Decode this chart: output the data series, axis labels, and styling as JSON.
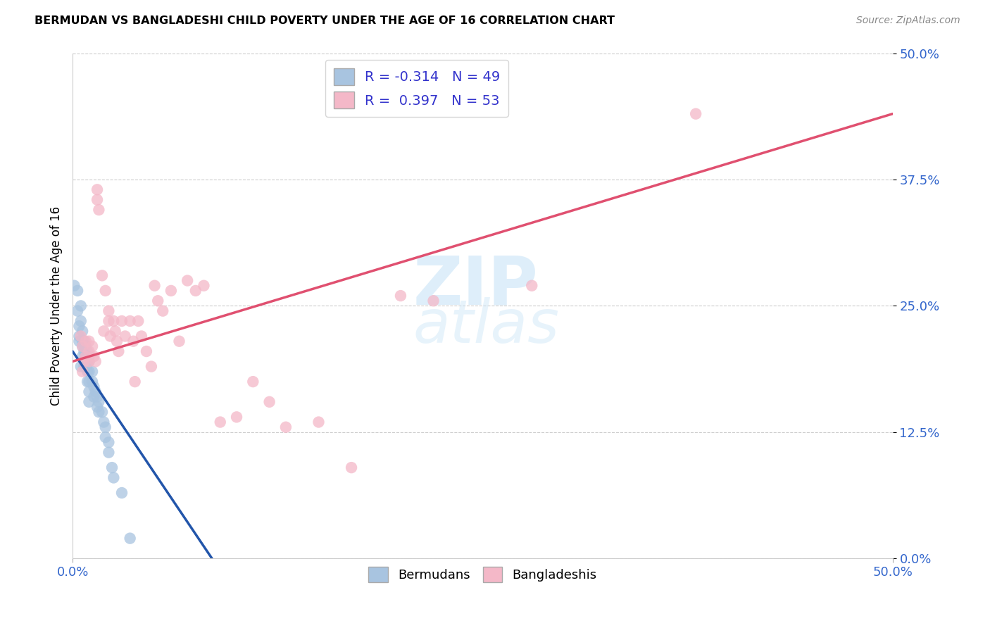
{
  "title": "BERMUDAN VS BANGLADESHI CHILD POVERTY UNDER THE AGE OF 16 CORRELATION CHART",
  "source": "Source: ZipAtlas.com",
  "ylabel": "Child Poverty Under the Age of 16",
  "xmin": 0.0,
  "xmax": 0.5,
  "ymin": 0.0,
  "ymax": 0.5,
  "yticks": [
    0.0,
    0.125,
    0.25,
    0.375,
    0.5
  ],
  "ytick_labels": [
    "0.0%",
    "12.5%",
    "25.0%",
    "37.5%",
    "50.0%"
  ],
  "bermuda_R": "-0.314",
  "bermuda_N": "49",
  "bangladesh_R": "0.397",
  "bangladesh_N": "53",
  "bermuda_color": "#a8c4e0",
  "bermuda_line_color": "#2255aa",
  "bangladesh_color": "#f4b8c8",
  "bangladesh_line_color": "#e05070",
  "grid_color": "#cccccc",
  "legend_color_blue": "#a8c4e0",
  "legend_color_pink": "#f4b8c8",
  "bermuda_x": [
    0.001,
    0.003,
    0.003,
    0.004,
    0.004,
    0.004,
    0.005,
    0.005,
    0.005,
    0.006,
    0.006,
    0.006,
    0.006,
    0.007,
    0.007,
    0.007,
    0.007,
    0.008,
    0.008,
    0.008,
    0.009,
    0.009,
    0.009,
    0.009,
    0.01,
    0.01,
    0.01,
    0.01,
    0.01,
    0.01,
    0.012,
    0.012,
    0.013,
    0.013,
    0.014,
    0.015,
    0.015,
    0.016,
    0.016,
    0.018,
    0.019,
    0.02,
    0.02,
    0.022,
    0.022,
    0.024,
    0.025,
    0.03,
    0.035
  ],
  "bermuda_y": [
    0.27,
    0.265,
    0.245,
    0.23,
    0.22,
    0.215,
    0.25,
    0.235,
    0.19,
    0.225,
    0.215,
    0.21,
    0.2,
    0.215,
    0.21,
    0.205,
    0.19,
    0.21,
    0.2,
    0.19,
    0.205,
    0.195,
    0.185,
    0.175,
    0.2,
    0.195,
    0.185,
    0.175,
    0.165,
    0.155,
    0.185,
    0.175,
    0.17,
    0.16,
    0.165,
    0.16,
    0.15,
    0.155,
    0.145,
    0.145,
    0.135,
    0.13,
    0.12,
    0.115,
    0.105,
    0.09,
    0.08,
    0.065,
    0.02
  ],
  "bangladesh_x": [
    0.005,
    0.006,
    0.006,
    0.007,
    0.008,
    0.008,
    0.01,
    0.01,
    0.01,
    0.012,
    0.013,
    0.014,
    0.015,
    0.015,
    0.016,
    0.018,
    0.019,
    0.02,
    0.022,
    0.022,
    0.023,
    0.025,
    0.026,
    0.027,
    0.028,
    0.03,
    0.032,
    0.035,
    0.037,
    0.038,
    0.04,
    0.042,
    0.045,
    0.048,
    0.05,
    0.052,
    0.055,
    0.06,
    0.065,
    0.07,
    0.075,
    0.08,
    0.09,
    0.1,
    0.11,
    0.12,
    0.13,
    0.15,
    0.17,
    0.2,
    0.22,
    0.28,
    0.38
  ],
  "bangladesh_y": [
    0.22,
    0.21,
    0.185,
    0.195,
    0.215,
    0.2,
    0.215,
    0.205,
    0.195,
    0.21,
    0.2,
    0.195,
    0.365,
    0.355,
    0.345,
    0.28,
    0.225,
    0.265,
    0.245,
    0.235,
    0.22,
    0.235,
    0.225,
    0.215,
    0.205,
    0.235,
    0.22,
    0.235,
    0.215,
    0.175,
    0.235,
    0.22,
    0.205,
    0.19,
    0.27,
    0.255,
    0.245,
    0.265,
    0.215,
    0.275,
    0.265,
    0.27,
    0.135,
    0.14,
    0.175,
    0.155,
    0.13,
    0.135,
    0.09,
    0.26,
    0.255,
    0.27,
    0.44
  ],
  "bang_line_x0": 0.0,
  "bang_line_x1": 0.5,
  "bang_line_y0": 0.195,
  "bang_line_y1": 0.44,
  "berm_line_x0": 0.0,
  "berm_line_x1": 0.085,
  "berm_line_y0": 0.205,
  "berm_line_y1": 0.0
}
